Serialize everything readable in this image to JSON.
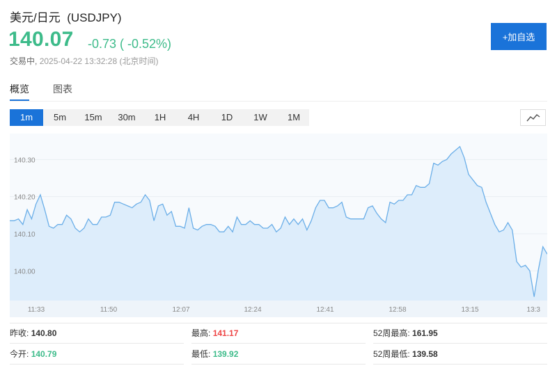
{
  "header": {
    "title": "美元/日元",
    "symbol": "(USDJPY)",
    "price": "140.07",
    "change": "-0.73 ( -0.52%)",
    "status": "交易中,",
    "timestamp": "2025-04-22 13:32:28",
    "timezone": "(北京时间)",
    "add_button": "+加自选"
  },
  "tabs": [
    {
      "label": "概览",
      "active": true
    },
    {
      "label": "图表",
      "active": false
    }
  ],
  "ranges": [
    {
      "label": "1m",
      "active": true
    },
    {
      "label": "5m"
    },
    {
      "label": "15m"
    },
    {
      "label": "30m"
    },
    {
      "label": "1H"
    },
    {
      "label": "4H"
    },
    {
      "label": "1D"
    },
    {
      "label": "1W"
    },
    {
      "label": "1M"
    }
  ],
  "chart_type_icon": "line-chart-icon",
  "colors": {
    "up": "#ee4444",
    "down": "#3dbb8a",
    "accent": "#1a73d9",
    "line": "#6aaee8",
    "fill": "#ddedfb"
  },
  "chart_data": {
    "type": "area",
    "x_ticks": [
      "11:33",
      "11:50",
      "12:07",
      "12:24",
      "12:41",
      "12:58",
      "13:15",
      "13:3"
    ],
    "y_ticks": [
      "140.30",
      "140.20",
      "140.10",
      "140.00"
    ],
    "ylim": [
      139.92,
      140.37
    ],
    "grid": true,
    "x": [
      0,
      1,
      2,
      3,
      4,
      5,
      6,
      7,
      8,
      9,
      10,
      11,
      12,
      13,
      14,
      15,
      16,
      17,
      18,
      19,
      20,
      21,
      22,
      23,
      24,
      25,
      26,
      27,
      28,
      29,
      30,
      31,
      32,
      33,
      34,
      35,
      36,
      37,
      38,
      39,
      40,
      41,
      42,
      43,
      44,
      45,
      46,
      47,
      48,
      49,
      50,
      51,
      52,
      53,
      54,
      55,
      56,
      57,
      58,
      59,
      60,
      61,
      62,
      63,
      64,
      65,
      66,
      67,
      68,
      69,
      70,
      71,
      72,
      73,
      74,
      75,
      76,
      77,
      78,
      79,
      80,
      81,
      82,
      83,
      84,
      85,
      86,
      87,
      88,
      89,
      90,
      91,
      92,
      93,
      94,
      95,
      96,
      97,
      98,
      99,
      100,
      101,
      102,
      103,
      104,
      105,
      106,
      107,
      108,
      109,
      110,
      111,
      112,
      113,
      114,
      115,
      116,
      117,
      118,
      119,
      120,
      121,
      122,
      123
    ],
    "values": [
      140.135,
      140.135,
      140.14,
      140.125,
      140.165,
      140.14,
      140.18,
      140.205,
      140.165,
      140.12,
      140.115,
      140.125,
      140.125,
      140.15,
      140.14,
      140.115,
      140.105,
      140.115,
      140.14,
      140.125,
      140.125,
      140.145,
      140.145,
      140.15,
      140.185,
      140.185,
      140.18,
      140.175,
      140.17,
      140.18,
      140.185,
      140.205,
      140.19,
      140.135,
      140.175,
      140.18,
      140.15,
      140.16,
      140.12,
      140.12,
      140.115,
      140.17,
      140.115,
      140.11,
      140.12,
      140.125,
      140.125,
      140.12,
      140.105,
      140.105,
      140.12,
      140.105,
      140.145,
      140.125,
      140.125,
      140.135,
      140.125,
      140.125,
      140.115,
      140.115,
      140.125,
      140.105,
      140.115,
      140.145,
      140.125,
      140.14,
      140.125,
      140.14,
      140.11,
      140.135,
      140.17,
      140.19,
      140.19,
      140.17,
      140.17,
      140.175,
      140.185,
      140.145,
      140.14,
      140.14,
      140.14,
      140.14,
      140.17,
      140.175,
      140.155,
      140.14,
      140.13,
      140.185,
      140.18,
      140.19,
      140.19,
      140.205,
      140.205,
      140.23,
      140.225,
      140.225,
      140.235,
      140.29,
      140.285,
      140.295,
      140.3,
      140.315,
      140.325,
      140.335,
      140.305,
      140.26,
      140.245,
      140.23,
      140.225,
      140.185,
      140.155,
      140.125,
      140.105,
      140.11,
      140.13,
      140.11,
      140.025,
      140.01,
      140.015,
      140.0,
      139.93,
      140.005,
      140.065,
      140.045
    ]
  },
  "stats": {
    "prev_close_label": "昨收:",
    "prev_close": "140.80",
    "open_label": "今开:",
    "open": "140.79",
    "high_label": "最高:",
    "high": "141.17",
    "low_label": "最低:",
    "low": "139.92",
    "w52_high_label": "52周最高:",
    "w52_high": "161.95",
    "w52_low_label": "52周最低:",
    "w52_low": "139.58"
  }
}
